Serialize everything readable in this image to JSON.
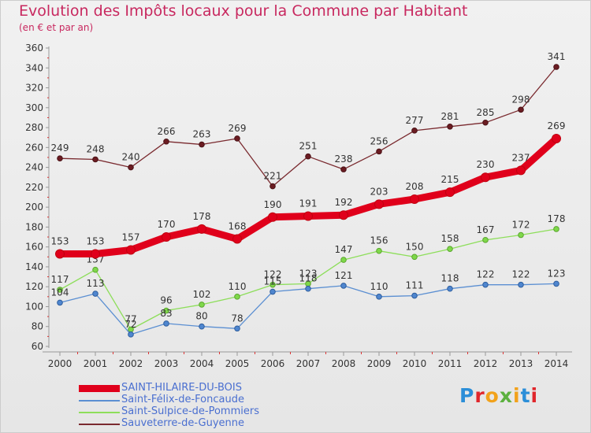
{
  "title": "Evolution des Impôts locaux pour la Commune par Habitant",
  "subtitle": "(en € et par an)",
  "logo": {
    "letters": [
      "P",
      "r",
      "o",
      "x",
      "i",
      "t",
      "i"
    ],
    "colors": [
      "#2b8ed8",
      "#e0262b",
      "#f2a21b",
      "#5cb13f",
      "#f2a21b",
      "#2b8ed8",
      "#e0262b"
    ]
  },
  "chart_data": {
    "type": "line",
    "title": "Evolution des Impôts locaux pour la Commune par Habitant",
    "subtitle": "(en € et par an)",
    "xlabel": "",
    "ylabel": "",
    "x": [
      2000,
      2001,
      2002,
      2003,
      2004,
      2005,
      2006,
      2007,
      2008,
      2009,
      2010,
      2011,
      2012,
      2013,
      2014
    ],
    "ylim": [
      60,
      360
    ],
    "yticks": [
      60,
      80,
      100,
      120,
      140,
      160,
      180,
      200,
      220,
      240,
      260,
      280,
      300,
      320,
      340,
      360
    ],
    "grid": false,
    "legend": "bottom-left",
    "series": [
      {
        "name": "Sauveterre-de-Guyenne",
        "color": "#7a2a2f",
        "values": [
          249,
          248,
          240,
          266,
          263,
          269,
          221,
          251,
          238,
          256,
          277,
          281,
          285,
          298,
          341
        ]
      },
      {
        "name": "Saint-Sulpice-de-Pommiers",
        "color": "#8dde5a",
        "values": [
          117,
          137,
          77,
          96,
          102,
          110,
          122,
          123,
          147,
          156,
          150,
          158,
          167,
          172,
          178
        ]
      },
      {
        "name": "Saint-Félix-de-Foncaude",
        "color": "#5b8fd2",
        "values": [
          104,
          113,
          72,
          83,
          80,
          78,
          115,
          118,
          121,
          110,
          111,
          118,
          122,
          122,
          123
        ]
      },
      {
        "name": "SAINT-HILAIRE-DU-BOIS",
        "color": "#e0001b",
        "values": [
          153,
          153,
          157,
          170,
          178,
          168,
          190,
          191,
          192,
          203,
          208,
          215,
          230,
          237,
          269
        ]
      }
    ]
  }
}
